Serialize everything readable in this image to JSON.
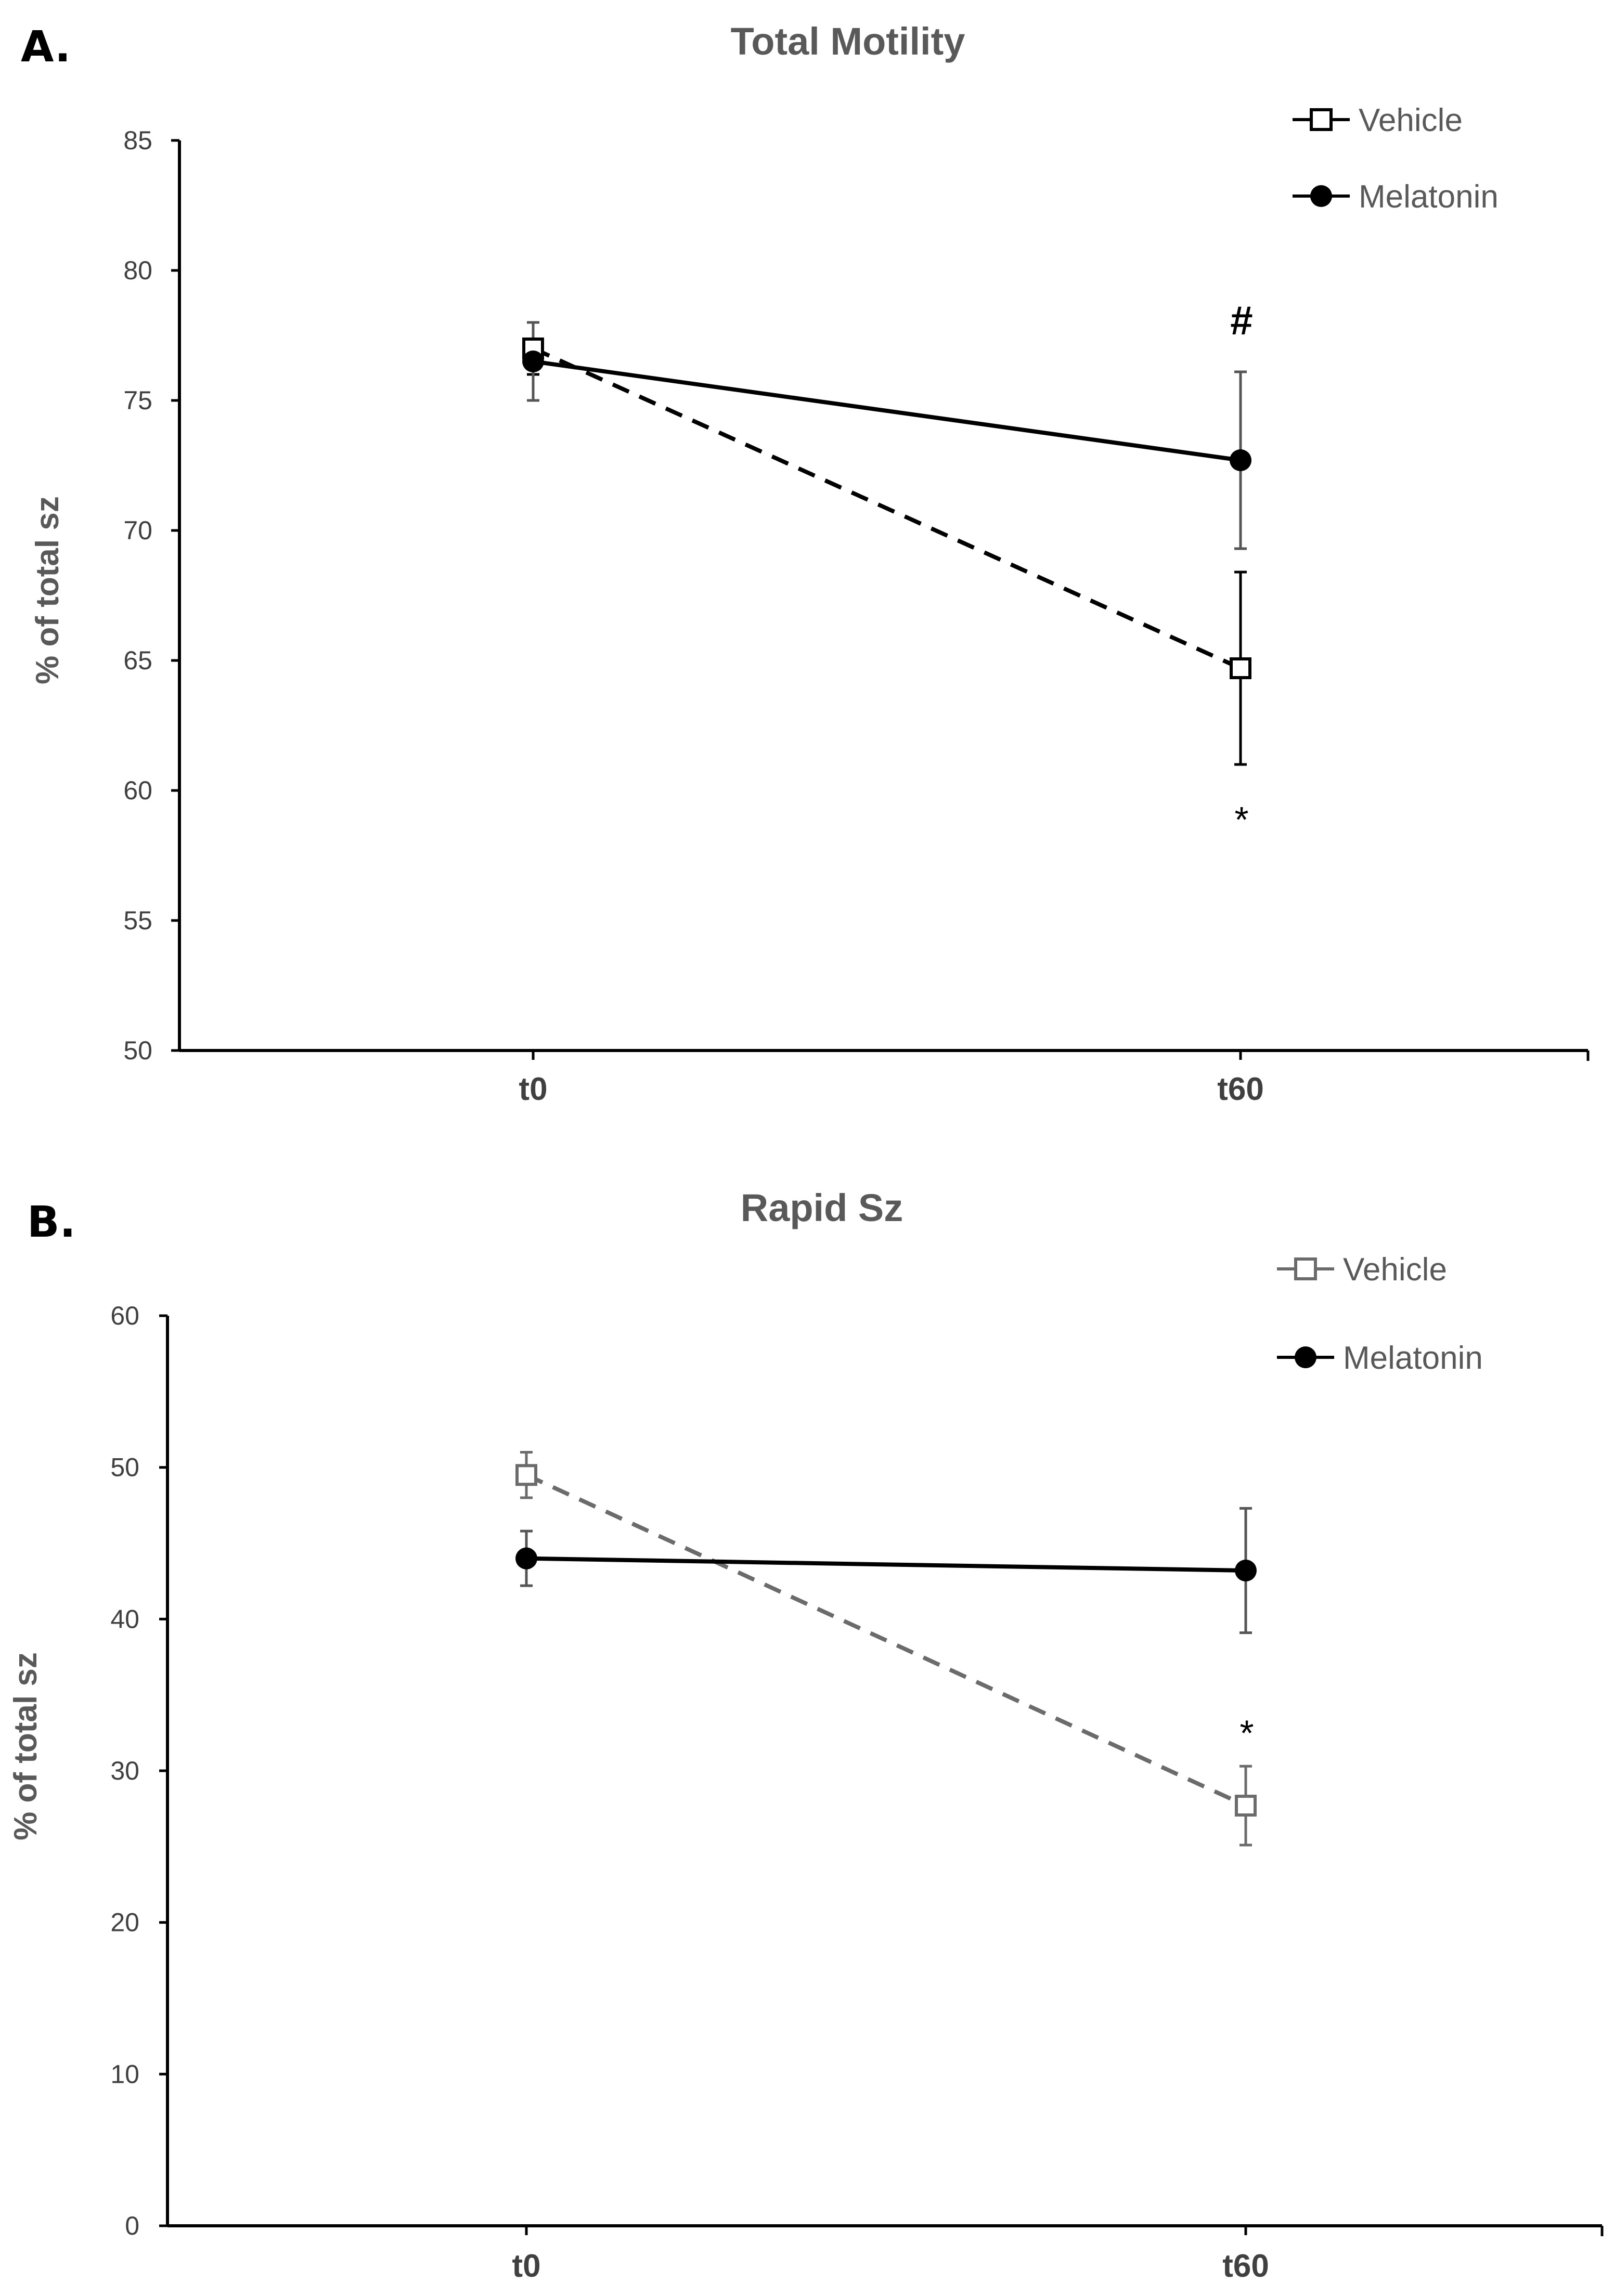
{
  "chart_data": [
    {
      "panel_label": "A.",
      "type": "line",
      "title": "Total Motility",
      "xlabel": "",
      "ylabel": "% of total sz",
      "categories": [
        "t0",
        "t60"
      ],
      "ylim": [
        50,
        85
      ],
      "yticks": [
        50,
        55,
        60,
        65,
        70,
        75,
        80,
        85
      ],
      "legend_position": "top-right",
      "series": [
        {
          "name": "Vehicle",
          "values": [
            77.0,
            64.7
          ],
          "errors": [
            1.0,
            3.7
          ],
          "line_style": "dashed",
          "marker": "open-square",
          "color": "#000000"
        },
        {
          "name": "Melatonin",
          "values": [
            76.5,
            72.7
          ],
          "errors": [
            1.5,
            3.4
          ],
          "line_style": "solid",
          "marker": "filled-circle",
          "color": "#000000"
        }
      ],
      "annotations": [
        {
          "text": "#",
          "category": "t60",
          "series": "Melatonin",
          "position": "above"
        },
        {
          "text": "*",
          "category": "t60",
          "series": "Vehicle",
          "position": "below"
        }
      ]
    },
    {
      "panel_label": "B.",
      "type": "line",
      "title": "Rapid Sz",
      "xlabel": "",
      "ylabel": "% of total sz",
      "categories": [
        "t0",
        "t60"
      ],
      "ylim": [
        0,
        60
      ],
      "yticks": [
        0,
        10,
        20,
        30,
        40,
        50,
        60
      ],
      "legend_position": "top-right",
      "series": [
        {
          "name": "Vehicle",
          "values": [
            49.5,
            27.7
          ],
          "errors": [
            1.5,
            2.6
          ],
          "line_style": "dashed",
          "marker": "open-square",
          "color": "#6b6b6b"
        },
        {
          "name": "Melatonin",
          "values": [
            44.0,
            43.2
          ],
          "errors": [
            1.8,
            4.1
          ],
          "line_style": "solid",
          "marker": "filled-circle",
          "color": "#000000"
        }
      ],
      "annotations": [
        {
          "text": "*",
          "category": "t60",
          "series": "Vehicle",
          "position": "above"
        }
      ]
    }
  ]
}
